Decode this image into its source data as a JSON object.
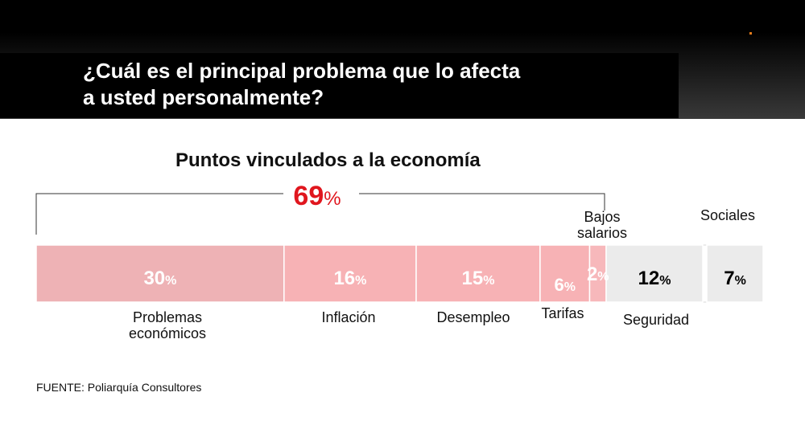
{
  "header": {
    "title_line1": "¿Cuál es el principal problema que lo afecta",
    "title_line2": "a usted personalmente?"
  },
  "colors": {
    "economy_segment": "#f5b3b6",
    "economy_light": "#f8c5c7",
    "other_segment": "#ebebeb",
    "highlight_red": "#e0161e"
  },
  "chart_data": {
    "type": "bar",
    "subtitle": "Puntos vinculados a la economía",
    "group_total": {
      "value": 69,
      "label": "69",
      "unit": "%"
    },
    "categories": [
      "Problemas económicos",
      "Inflación",
      "Desempleo",
      "Tarifas",
      "Bajos salarios",
      "Seguridad",
      "Sociales"
    ],
    "values": [
      30,
      16,
      15,
      6,
      2,
      12,
      7
    ],
    "group": [
      "economia",
      "economia",
      "economia",
      "economia",
      "economia",
      "otros",
      "otros"
    ]
  },
  "source": "FUENTE: Poliarquía Consultores"
}
